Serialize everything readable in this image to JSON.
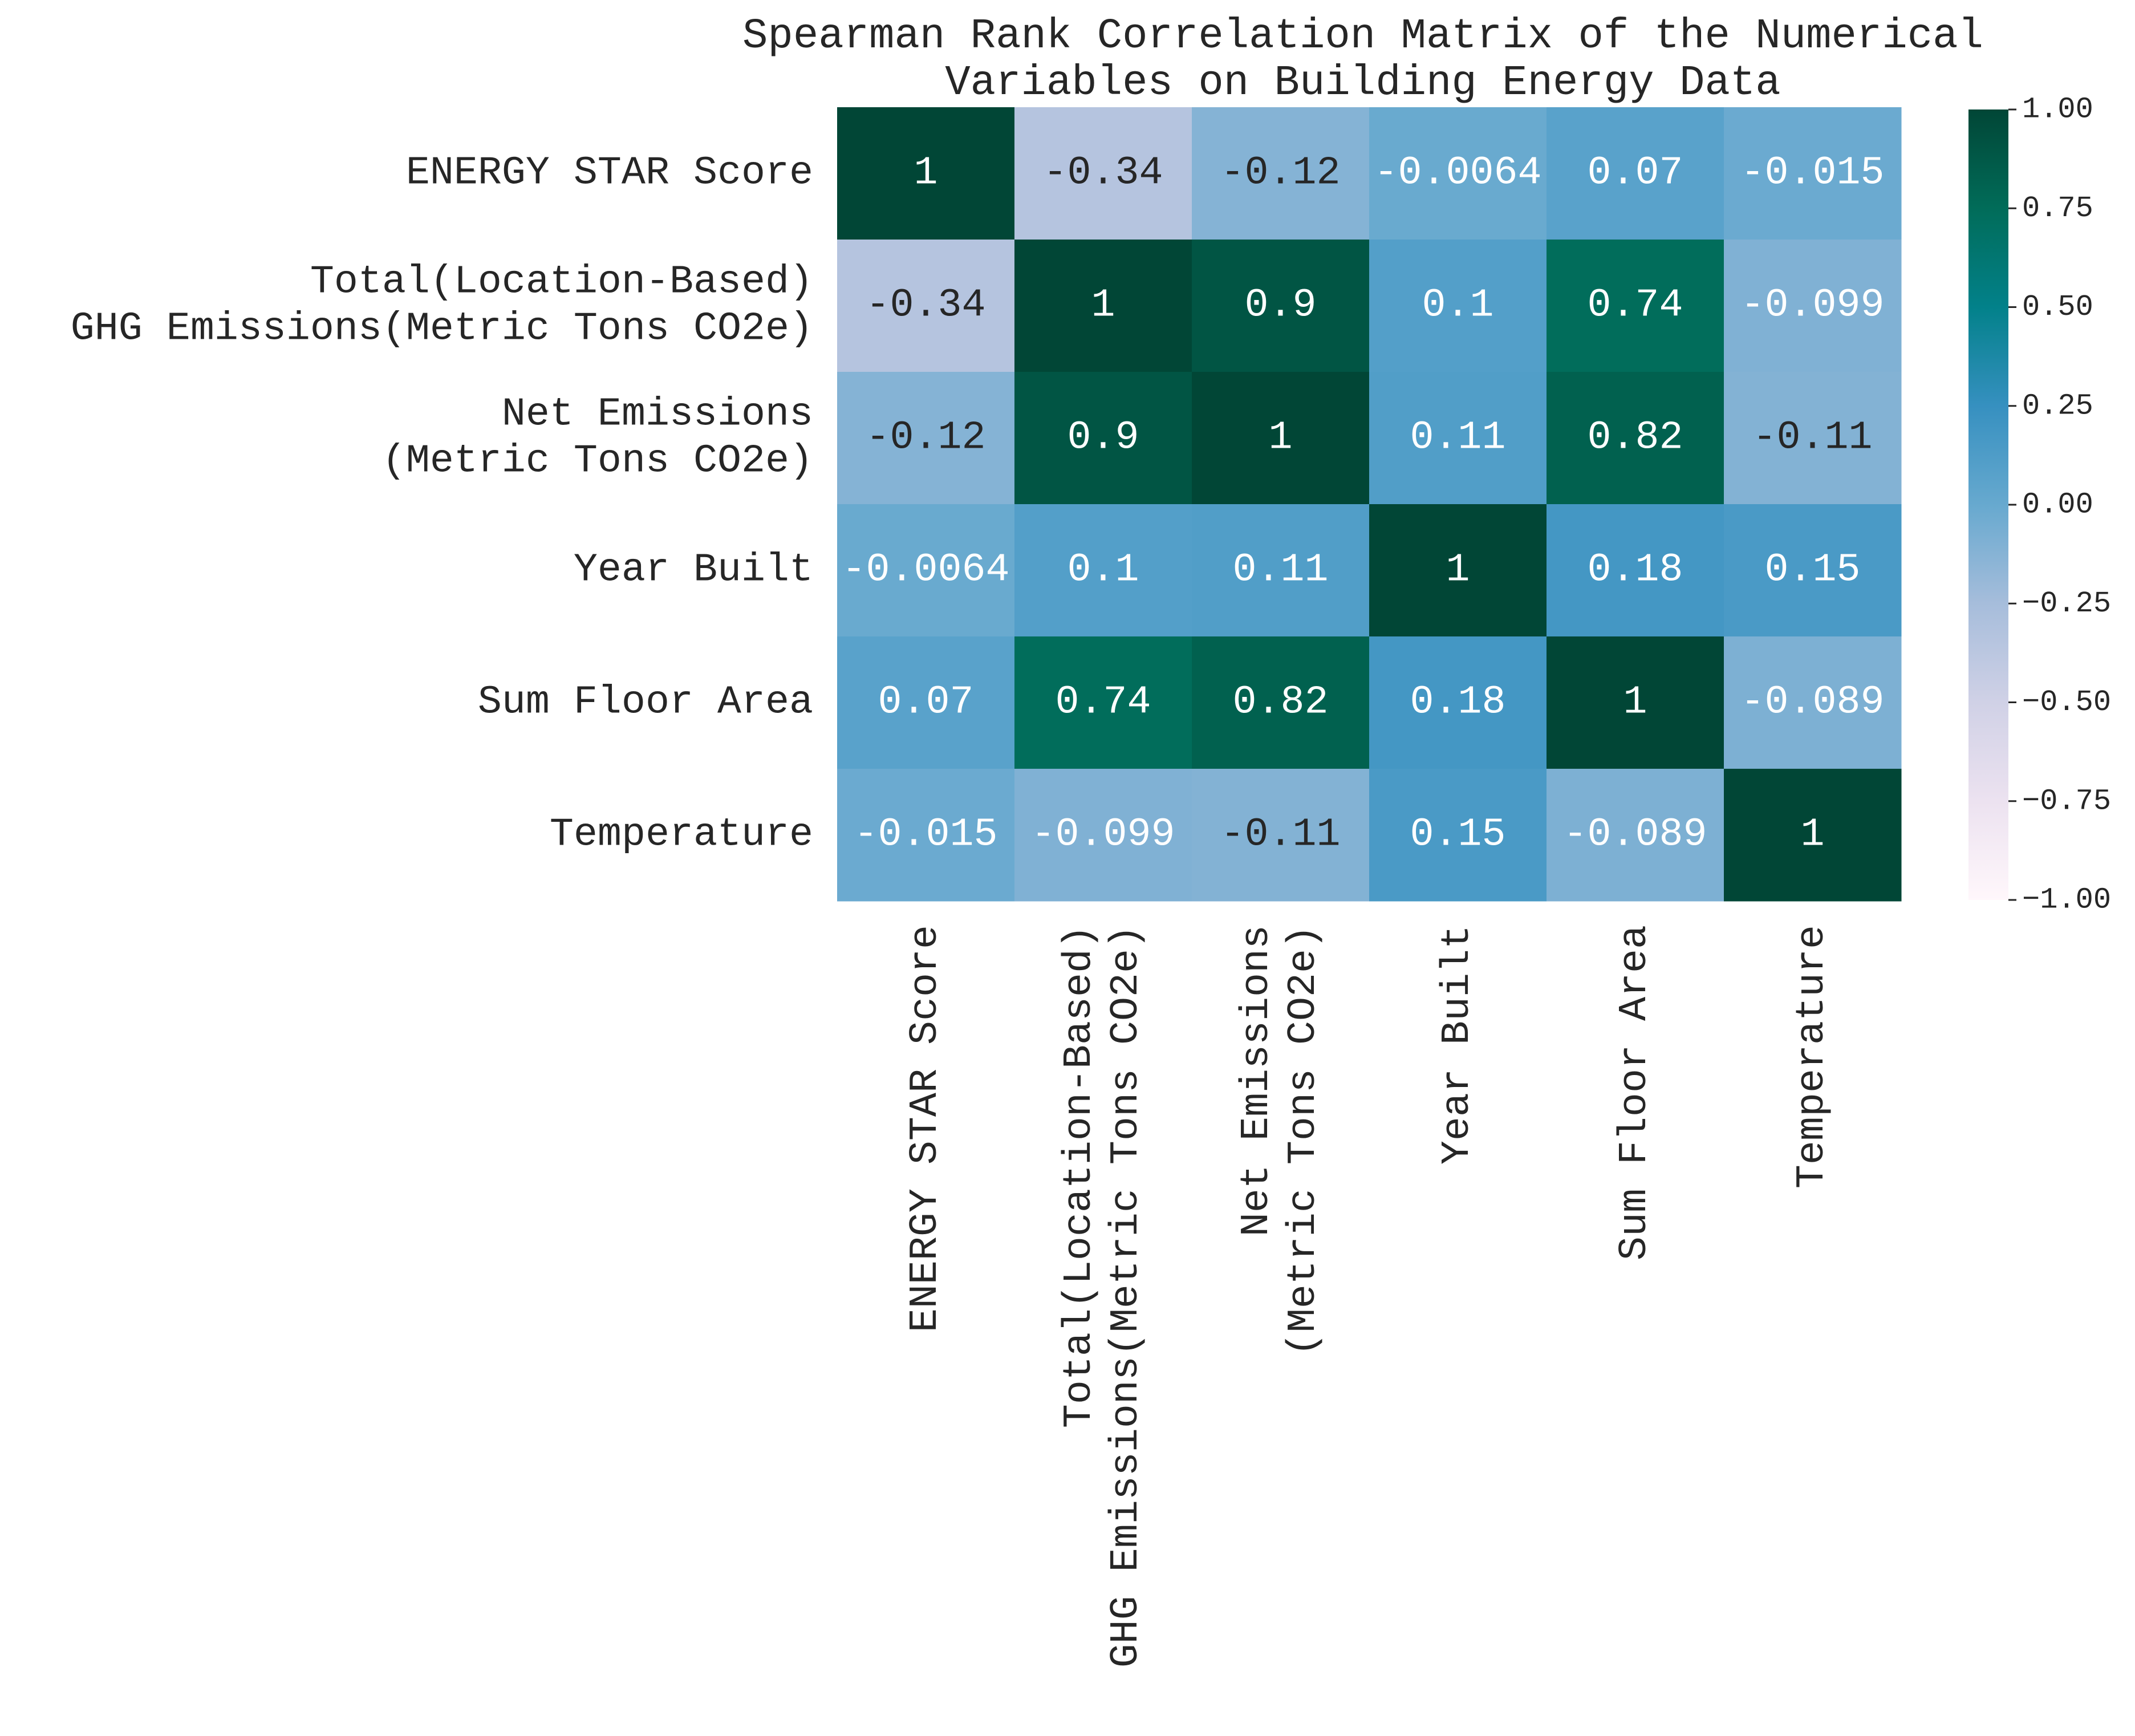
{
  "chart_data": {
    "type": "heatmap",
    "title": "Spearman Rank Correlation Matrix of the Numerical Variables on Building Energy Data",
    "title_lines": [
      "Spearman Rank Correlation Matrix of the Numerical",
      "Variables on Building Energy Data"
    ],
    "row_labels": [
      [
        "ENERGY STAR Score"
      ],
      [
        "Total(Location-Based)",
        "GHG Emissions(Metric Tons CO2e)"
      ],
      [
        "Net Emissions",
        "(Metric Tons CO2e)"
      ],
      [
        "Year Built"
      ],
      [
        "Sum Floor Area"
      ],
      [
        "Temperature"
      ]
    ],
    "col_labels": [
      [
        "ENERGY STAR Score"
      ],
      [
        "Total(Location-Based)",
        "GHG Emissions(Metric Tons CO2e)"
      ],
      [
        "Net Emissions",
        "(Metric Tons CO2e)"
      ],
      [
        "Year Built"
      ],
      [
        "Sum Floor Area"
      ],
      [
        "Temperature"
      ]
    ],
    "values": [
      [
        1,
        -0.34,
        -0.12,
        -0.0064,
        0.07,
        -0.015
      ],
      [
        -0.34,
        1,
        0.9,
        0.1,
        0.74,
        -0.099
      ],
      [
        -0.12,
        0.9,
        1,
        0.11,
        0.82,
        -0.11
      ],
      [
        -0.0064,
        0.1,
        0.11,
        1,
        0.18,
        0.15
      ],
      [
        0.07,
        0.74,
        0.82,
        0.18,
        1,
        -0.089
      ],
      [
        -0.015,
        -0.099,
        -0.11,
        0.15,
        -0.089,
        1
      ]
    ],
    "annotations": [
      [
        "1",
        "-0.34",
        "-0.12",
        "-0.0064",
        "0.07",
        "-0.015"
      ],
      [
        "-0.34",
        "1",
        "0.9",
        "0.1",
        "0.74",
        "-0.099"
      ],
      [
        "-0.12",
        "0.9",
        "1",
        "0.11",
        "0.82",
        "-0.11"
      ],
      [
        "-0.0064",
        "0.1",
        "0.11",
        "1",
        "0.18",
        "0.15"
      ],
      [
        "0.07",
        "0.74",
        "0.82",
        "0.18",
        "1",
        "-0.089"
      ],
      [
        "-0.015",
        "-0.099",
        "-0.11",
        "0.15",
        "-0.089",
        "1"
      ]
    ],
    "colormap": "PuBuGn",
    "vmin": -1,
    "vmax": 1,
    "colorbar_ticks": [
      1,
      0.75,
      0.5,
      0.25,
      0,
      -0.25,
      -0.5,
      -0.75,
      -1
    ],
    "colorbar_tick_labels": [
      "1.00",
      "0.75",
      "0.50",
      "0.25",
      "0.00",
      "−0.25",
      "−0.50",
      "−0.75",
      "−1.00"
    ],
    "colors": {
      "text_dark": "#262626",
      "text_light": "#ffffff"
    }
  }
}
